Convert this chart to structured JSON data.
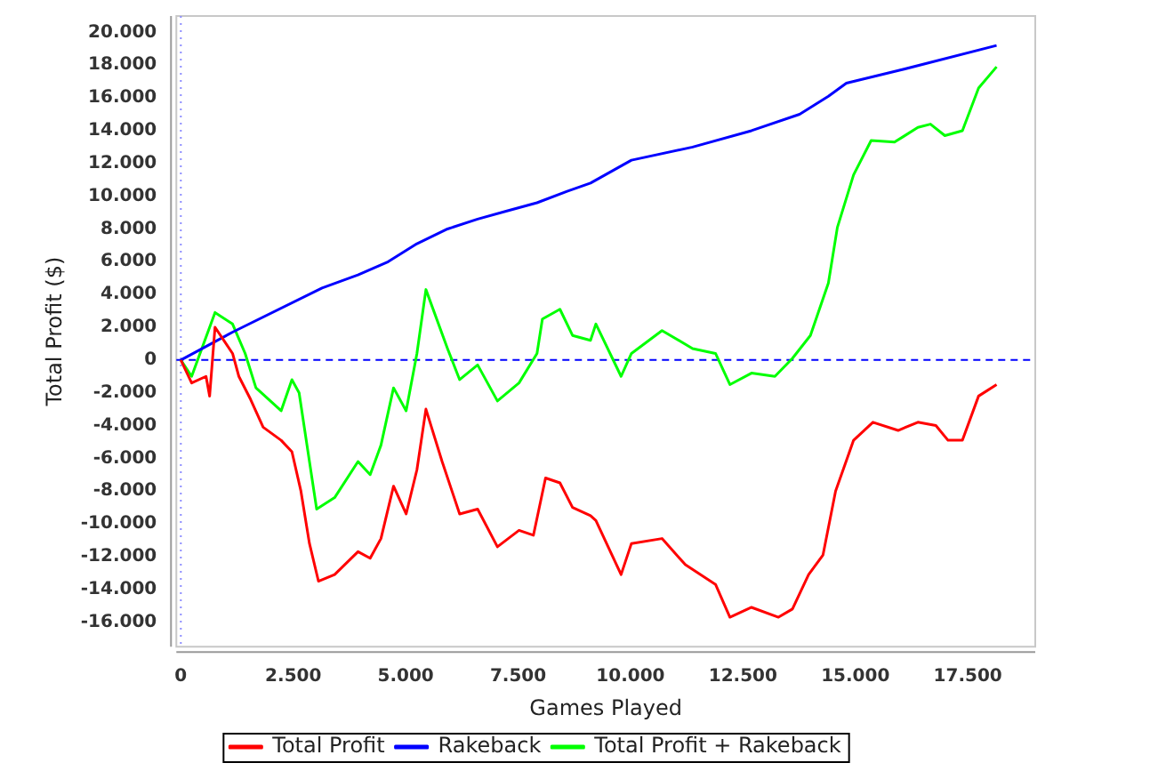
{
  "chart_data": {
    "type": "line",
    "xlabel": "Games Played",
    "ylabel": "Total Profit ($)",
    "xlim": [
      -100,
      19000
    ],
    "xticks": [
      {
        "value": 0,
        "label": "0"
      },
      {
        "value": 2500,
        "label": "2.500"
      },
      {
        "value": 5000,
        "label": "5.000"
      },
      {
        "value": 7500,
        "label": "7.500"
      },
      {
        "value": 10000,
        "label": "10.000"
      },
      {
        "value": 12500,
        "label": "12.500"
      },
      {
        "value": 15000,
        "label": "15.000"
      },
      {
        "value": 17500,
        "label": "17.500"
      }
    ],
    "ylim": [
      -17500,
      21000
    ],
    "yticks": [
      {
        "value": -16000,
        "label": "-16.000"
      },
      {
        "value": -14000,
        "label": "-14.000"
      },
      {
        "value": -12000,
        "label": "-12.000"
      },
      {
        "value": -10000,
        "label": "-10.000"
      },
      {
        "value": -8000,
        "label": "-8.000"
      },
      {
        "value": -6000,
        "label": "-6.000"
      },
      {
        "value": -4000,
        "label": "-4.000"
      },
      {
        "value": -2000,
        "label": "-2.000"
      },
      {
        "value": 0,
        "label": "0"
      },
      {
        "value": 2000,
        "label": "2.000"
      },
      {
        "value": 4000,
        "label": "4.000"
      },
      {
        "value": 6000,
        "label": "6.000"
      },
      {
        "value": 8000,
        "label": "8.000"
      },
      {
        "value": 10000,
        "label": "10.000"
      },
      {
        "value": 12000,
        "label": "12.000"
      },
      {
        "value": 14000,
        "label": "14.000"
      },
      {
        "value": 16000,
        "label": "16.000"
      },
      {
        "value": 18000,
        "label": "18.000"
      },
      {
        "value": 20000,
        "label": "20.000"
      }
    ],
    "grid": false,
    "legend": "bottom",
    "marker": "none",
    "line_style": "solid",
    "ref_lines": [
      {
        "axis": "y",
        "value": 0,
        "color": "#0000ff",
        "line_style": "dashed"
      },
      {
        "axis": "x",
        "value": 0,
        "color": "#8c8cff",
        "line_style": "dotted"
      }
    ],
    "series": [
      {
        "name": "Total Profit",
        "color": "#ff0000",
        "x": [
          0,
          240,
          560,
          640,
          760,
          1150,
          1290,
          1550,
          1830,
          2230,
          2470,
          2670,
          2860,
          3060,
          3420,
          3940,
          4210,
          4450,
          4730,
          5010,
          5250,
          5450,
          5810,
          6200,
          6600,
          7040,
          7520,
          7840,
          8110,
          8430,
          8710,
          9110,
          9230,
          9790,
          10020,
          10700,
          11220,
          11890,
          12210,
          12690,
          13290,
          13600,
          13960,
          14280,
          14560,
          14960,
          15390,
          15950,
          16390,
          16790,
          17060,
          17380,
          17740,
          18140
        ],
        "values": [
          0,
          -1400,
          -1000,
          -2200,
          2000,
          400,
          -1000,
          -2400,
          -4100,
          -4900,
          -5600,
          -8000,
          -11200,
          -13500,
          -13100,
          -11700,
          -12100,
          -10900,
          -7700,
          -9400,
          -6700,
          -3000,
          -6200,
          -9400,
          -9100,
          -11400,
          -10400,
          -10700,
          -7200,
          -7500,
          -9000,
          -9500,
          -9800,
          -13100,
          -11200,
          -10900,
          -12500,
          -13700,
          -15700,
          -15100,
          -15700,
          -15200,
          -13100,
          -11900,
          -8000,
          -4900,
          -3800,
          -4300,
          -3800,
          -4000,
          -4900,
          -4900,
          -2200,
          -1500
        ]
      },
      {
        "name": "Rakeback",
        "color": "#0000ff",
        "x": [
          0,
          1150,
          3140,
          3940,
          4610,
          5250,
          5930,
          6600,
          7250,
          7920,
          8590,
          9110,
          10020,
          11380,
          12690,
          13760,
          14400,
          14800,
          16000,
          18140
        ],
        "values": [
          0,
          1700,
          4400,
          5200,
          6000,
          7100,
          8000,
          8600,
          9100,
          9600,
          10300,
          10800,
          12200,
          13000,
          14000,
          15000,
          16100,
          16900,
          17700,
          19200
        ]
      },
      {
        "name": "Total Profit + Rakeback",
        "color": "#00ff00",
        "x": [
          0,
          240,
          760,
          1150,
          1430,
          1670,
          2230,
          2470,
          2630,
          2860,
          3020,
          3420,
          3940,
          4210,
          4450,
          4730,
          5010,
          5250,
          5450,
          5930,
          6200,
          6600,
          7040,
          7520,
          7920,
          8040,
          8430,
          8710,
          9110,
          9230,
          9790,
          10020,
          10700,
          11380,
          11890,
          12210,
          12690,
          13210,
          13600,
          14000,
          14400,
          14600,
          14960,
          15350,
          15870,
          16390,
          16670,
          16990,
          17380,
          17740,
          18140
        ],
        "values": [
          0,
          -1000,
          2900,
          2200,
          400,
          -1700,
          -3100,
          -1200,
          -2000,
          -6200,
          -9100,
          -8400,
          -6200,
          -7000,
          -5200,
          -1700,
          -3100,
          400,
          4300,
          700,
          -1200,
          -300,
          -2500,
          -1400,
          400,
          2500,
          3100,
          1500,
          1200,
          2200,
          -1000,
          400,
          1800,
          700,
          400,
          -1500,
          -800,
          -1000,
          100,
          1500,
          4700,
          8100,
          11300,
          13400,
          13300,
          14200,
          14400,
          13700,
          14000,
          16600,
          17900
        ]
      }
    ]
  }
}
